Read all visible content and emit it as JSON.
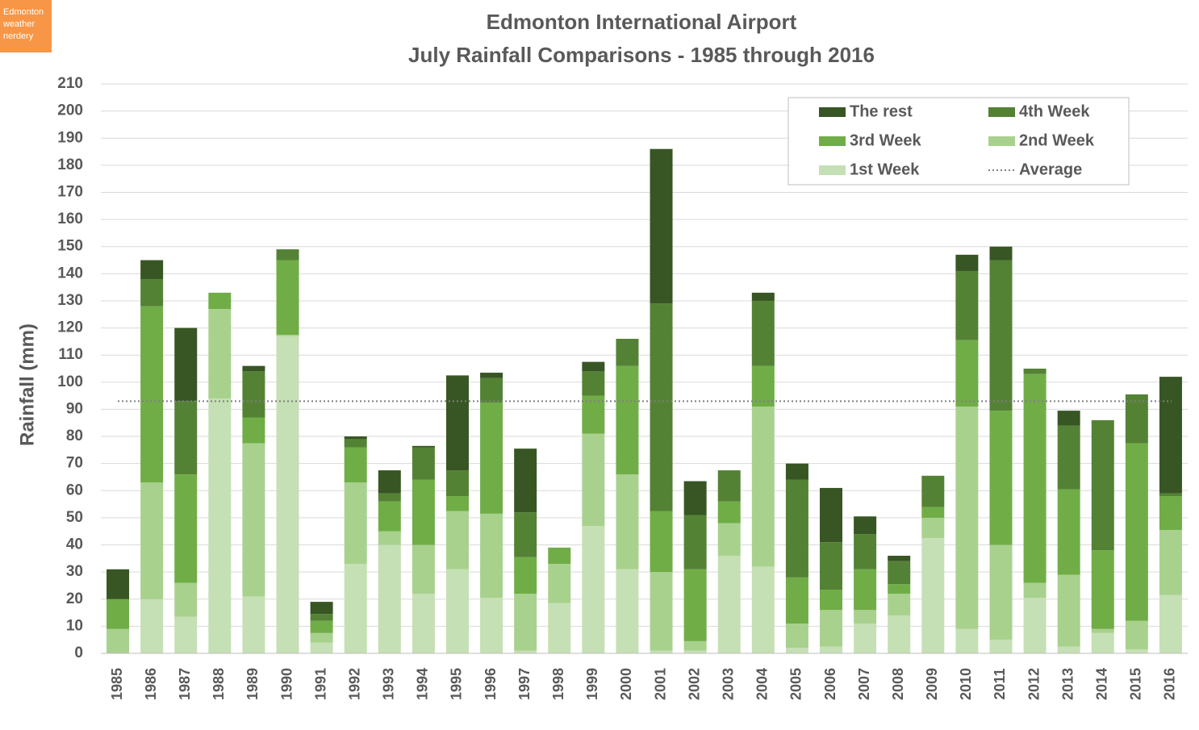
{
  "badge": "Edmonton weather nerdery",
  "chart_data": {
    "type": "stacked_bar",
    "title": "Edmonton International Airport",
    "subtitle": "July Rainfall Comparisons - 1985 through 2016",
    "y_label": "Rainfall (mm)",
    "categories": [
      "1985",
      "1986",
      "1987",
      "1988",
      "1989",
      "1990",
      "1991",
      "1992",
      "1993",
      "1994",
      "1995",
      "1996",
      "1997",
      "1998",
      "1999",
      "2000",
      "2001",
      "2002",
      "2003",
      "2004",
      "2005",
      "2006",
      "2007",
      "2008",
      "2009",
      "2010",
      "2011",
      "2012",
      "2013",
      "2014",
      "2015",
      "2016"
    ],
    "series": [
      {
        "name": "1st Week",
        "color": "#c5e0b4",
        "values": [
          0,
          20,
          13.5,
          94,
          21,
          117,
          4,
          33,
          40,
          22,
          31,
          20.5,
          1,
          18.5,
          47,
          31,
          1,
          1,
          36,
          32,
          2,
          2.5,
          11,
          14,
          42.5,
          9,
          5,
          20.5,
          2.5,
          7.5,
          1.5,
          21.5
        ]
      },
      {
        "name": "2nd Week",
        "color": "#a9d18e",
        "values": [
          9,
          43,
          12.5,
          33,
          56.5,
          0.5,
          3.5,
          30,
          5,
          18,
          21.5,
          31,
          21,
          14.5,
          34,
          35,
          29,
          3.5,
          12,
          59,
          9,
          13.5,
          5,
          8,
          7.5,
          82,
          35,
          5.5,
          26.5,
          1.5,
          10.5,
          24
        ]
      },
      {
        "name": "3rd Week",
        "color": "#70ad47",
        "values": [
          11,
          65,
          40,
          6,
          9.5,
          27.5,
          4.5,
          13,
          11,
          24,
          5.5,
          41,
          13.5,
          6,
          14,
          40,
          22.5,
          26.5,
          8,
          15,
          17,
          7.5,
          15,
          3.5,
          4,
          24.5,
          49.5,
          77,
          31.5,
          29,
          65.5,
          12.5
        ]
      },
      {
        "name": "4th Week",
        "color": "#548235",
        "values": [
          0,
          10,
          27,
          0,
          17,
          4,
          2.5,
          3,
          3,
          12,
          9.5,
          9,
          16.5,
          0,
          9,
          10,
          76.5,
          20,
          11.5,
          24,
          36,
          17.5,
          13,
          8.5,
          11.5,
          25.5,
          55.5,
          2,
          23.5,
          48,
          18,
          1
        ]
      },
      {
        "name": "The rest",
        "color": "#375623",
        "values": [
          11,
          7,
          27,
          0,
          2,
          0,
          4.5,
          1,
          8.5,
          0.5,
          35,
          2,
          23.5,
          0,
          3.5,
          0,
          57,
          12.5,
          0,
          3,
          6,
          20,
          6.5,
          2,
          0,
          6,
          5,
          0,
          5.5,
          0,
          0,
          43
        ]
      }
    ],
    "average": {
      "name": "Average",
      "value": 93,
      "color": "#7f7f7f"
    },
    "ylim": [
      0,
      210
    ],
    "yticks": [
      0,
      10,
      20,
      30,
      40,
      50,
      60,
      70,
      80,
      90,
      100,
      110,
      120,
      130,
      140,
      150,
      160,
      170,
      180,
      190,
      200,
      210
    ],
    "grid": true
  }
}
